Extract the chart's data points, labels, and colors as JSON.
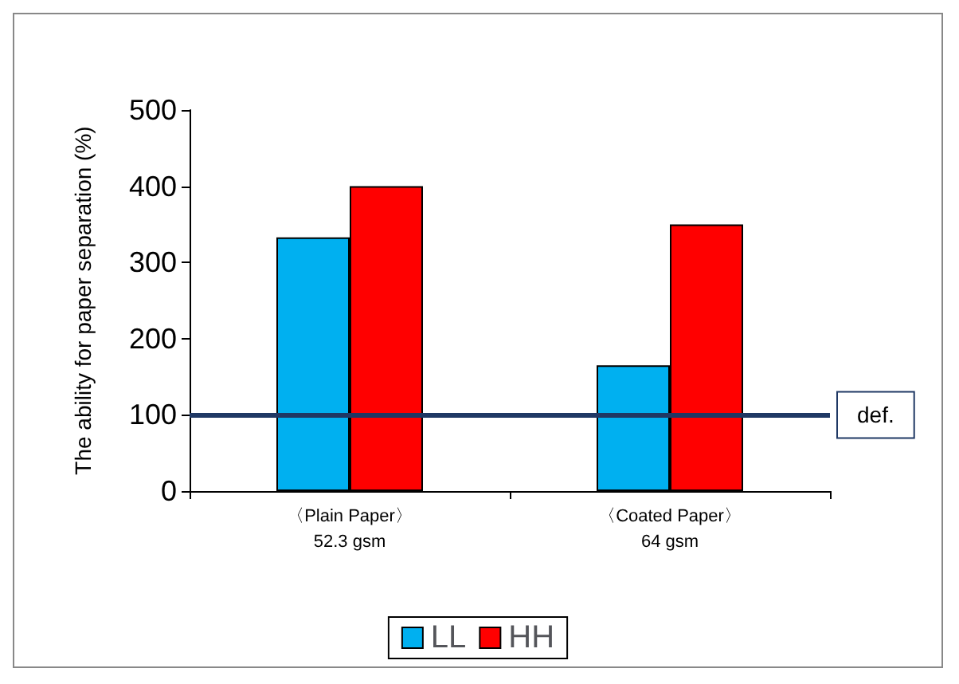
{
  "chart_data": {
    "type": "bar",
    "ylabel": "The ability for paper separation (%)",
    "categories": [
      "〈Plain Paper〉\n52.3 gsm",
      "〈Coated Paper〉\n64 gsm"
    ],
    "series": [
      {
        "name": "LL",
        "color": "#00b0f0",
        "values": [
          333,
          165
        ]
      },
      {
        "name": "HH",
        "color": "#ff0000",
        "values": [
          400,
          350
        ]
      }
    ],
    "ylim": [
      0,
      500
    ],
    "yticks": [
      0,
      100,
      200,
      300,
      400,
      500
    ],
    "grid": false,
    "legend": "bottom",
    "ref_lines": [
      {
        "axis": "y",
        "value": 100,
        "label": "def.",
        "color": "#1f3864"
      }
    ]
  }
}
